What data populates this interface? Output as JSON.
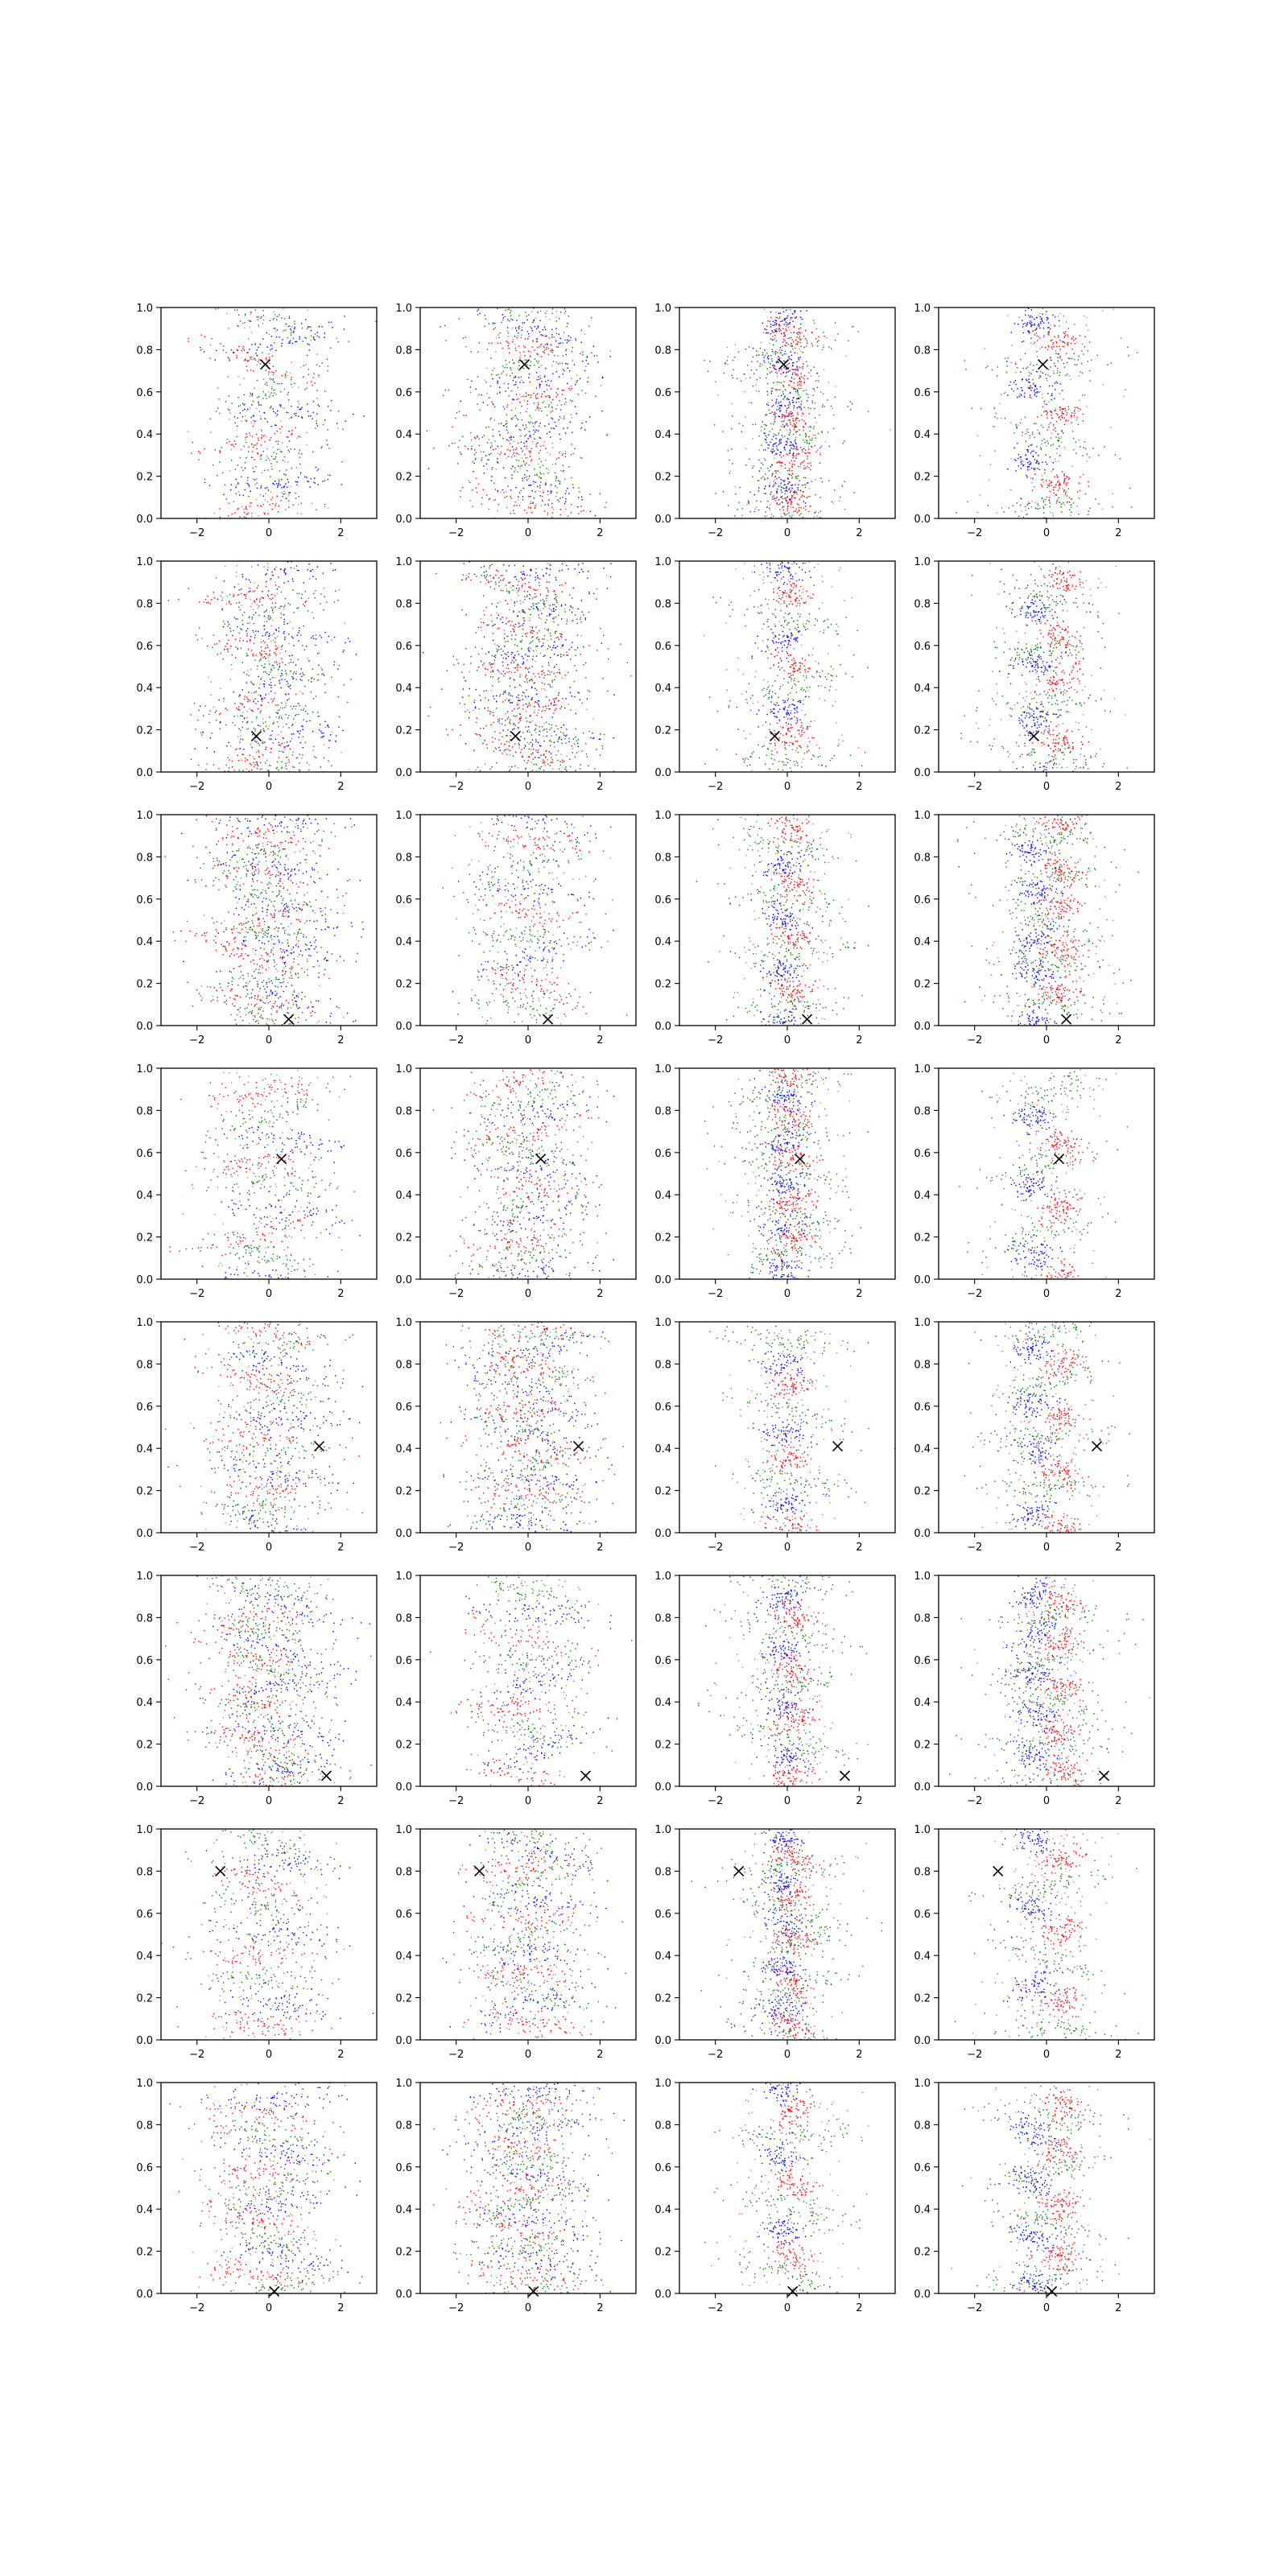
{
  "chart_data": {
    "type": "scatter",
    "layout": {
      "rows": 8,
      "cols": 4
    },
    "xlim": [
      -3.0,
      3.0
    ],
    "ylim": [
      0.0,
      1.0
    ],
    "x_ticks": [
      -2,
      0,
      2
    ],
    "x_tick_labels": [
      "−2",
      "0",
      "2"
    ],
    "y_ticks": [
      0.0,
      0.2,
      0.4,
      0.6,
      0.8,
      1.0
    ],
    "y_tick_labels": [
      "0.0",
      "0.2",
      "0.4",
      "0.6",
      "0.8",
      "1.0"
    ],
    "grid": false,
    "legend": "none",
    "colors": {
      "series_a": "#0000ff",
      "series_b": "#008000",
      "series_c": "#ff0000",
      "marker": "#000000"
    },
    "markers": [
      {
        "row": 0,
        "x": -0.1,
        "y": 0.73
      },
      {
        "row": 1,
        "x": -0.35,
        "y": 0.17
      },
      {
        "row": 2,
        "x": 0.55,
        "y": 0.03
      },
      {
        "row": 3,
        "x": 0.35,
        "y": 0.57
      },
      {
        "row": 4,
        "x": 1.4,
        "y": 0.41
      },
      {
        "row": 5,
        "x": 1.6,
        "y": 0.05
      },
      {
        "row": 6,
        "x": -1.35,
        "y": 0.8
      },
      {
        "row": 7,
        "x": 0.15,
        "y": 0.01
      }
    ]
  }
}
